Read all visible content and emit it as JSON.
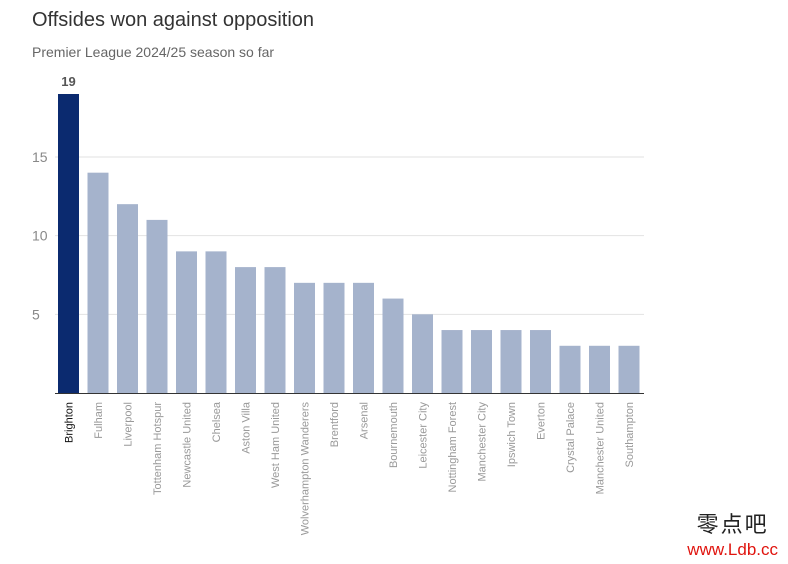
{
  "title": "Offsides won against opposition",
  "subtitle": "Premier League 2024/25 season so far",
  "colors": {
    "highlight": "#0b2a6f",
    "default": "#a5b3cc",
    "grid": "#e2e2e2",
    "axis": "#333333",
    "tick_text": "#999999",
    "highlight_text": "#111111"
  },
  "watermark": {
    "logo_text": "零点吧",
    "url": "www.Ldb.cc"
  },
  "chart_data": {
    "type": "bar",
    "title": "Offsides won against opposition",
    "subtitle": "Premier League 2024/25 season so far",
    "xlabel": "",
    "ylabel": "",
    "ylim": [
      0,
      19
    ],
    "yticks": [
      5,
      10,
      15
    ],
    "grid": true,
    "categories": [
      "Brighton",
      "Fulham",
      "Liverpool",
      "Tottenham Hotspur",
      "Newcastle United",
      "Chelsea",
      "Aston Villa",
      "West Ham United",
      "Wolverhampton Wanderers",
      "Brentford",
      "Arsenal",
      "Bournemouth",
      "Leicester City",
      "Nottingham Forest",
      "Manchester City",
      "Ipswich Town",
      "Everton",
      "Crystal Palace",
      "Manchester United",
      "Southampton"
    ],
    "values": [
      19,
      14,
      12,
      11,
      9,
      9,
      8,
      8,
      7,
      7,
      7,
      6,
      5,
      4,
      4,
      4,
      4,
      3,
      3,
      3
    ],
    "highlight_index": 0,
    "data_labels": [
      {
        "index": 0,
        "text": "19"
      }
    ]
  }
}
